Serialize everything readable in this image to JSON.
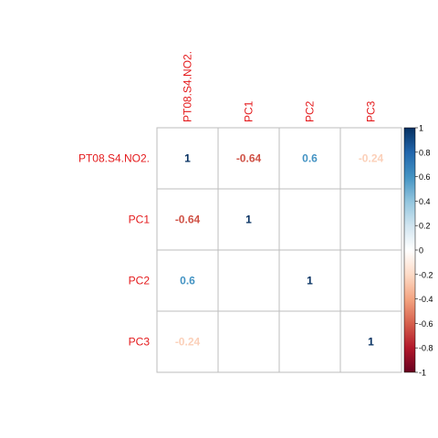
{
  "chart_data": {
    "type": "heatmap",
    "variables": [
      "PT08.S4.NO2.",
      "PC1",
      "PC2",
      "PC3"
    ],
    "matrix": [
      [
        1,
        -0.64,
        0.6,
        -0.24
      ],
      [
        -0.64,
        1,
        0,
        0
      ],
      [
        0.6,
        0,
        1,
        0
      ],
      [
        -0.24,
        0,
        0,
        1
      ]
    ],
    "cell_labels": [
      [
        "1",
        "-0.64",
        "0.6",
        "-0.24"
      ],
      [
        "-0.64",
        "1",
        "",
        ""
      ],
      [
        "0.6",
        "",
        "1",
        ""
      ],
      [
        "-0.24",
        "",
        "",
        "1"
      ]
    ],
    "colorbar": {
      "range": [
        -1,
        1
      ],
      "ticks": [
        "1",
        "0.8",
        "0.6",
        "0.4",
        "0.2",
        "0",
        "-0.2",
        "-0.4",
        "-0.6",
        "-0.8",
        "-1"
      ]
    },
    "grid": true,
    "legend": "right",
    "colors": {
      "label": "#E41A1C",
      "grid": "#BEBEBE",
      "text_1": "#053061",
      "text_neg064": "#D6604D",
      "text_06": "#4393C3",
      "text_neg024": "#FDDBC7"
    }
  }
}
